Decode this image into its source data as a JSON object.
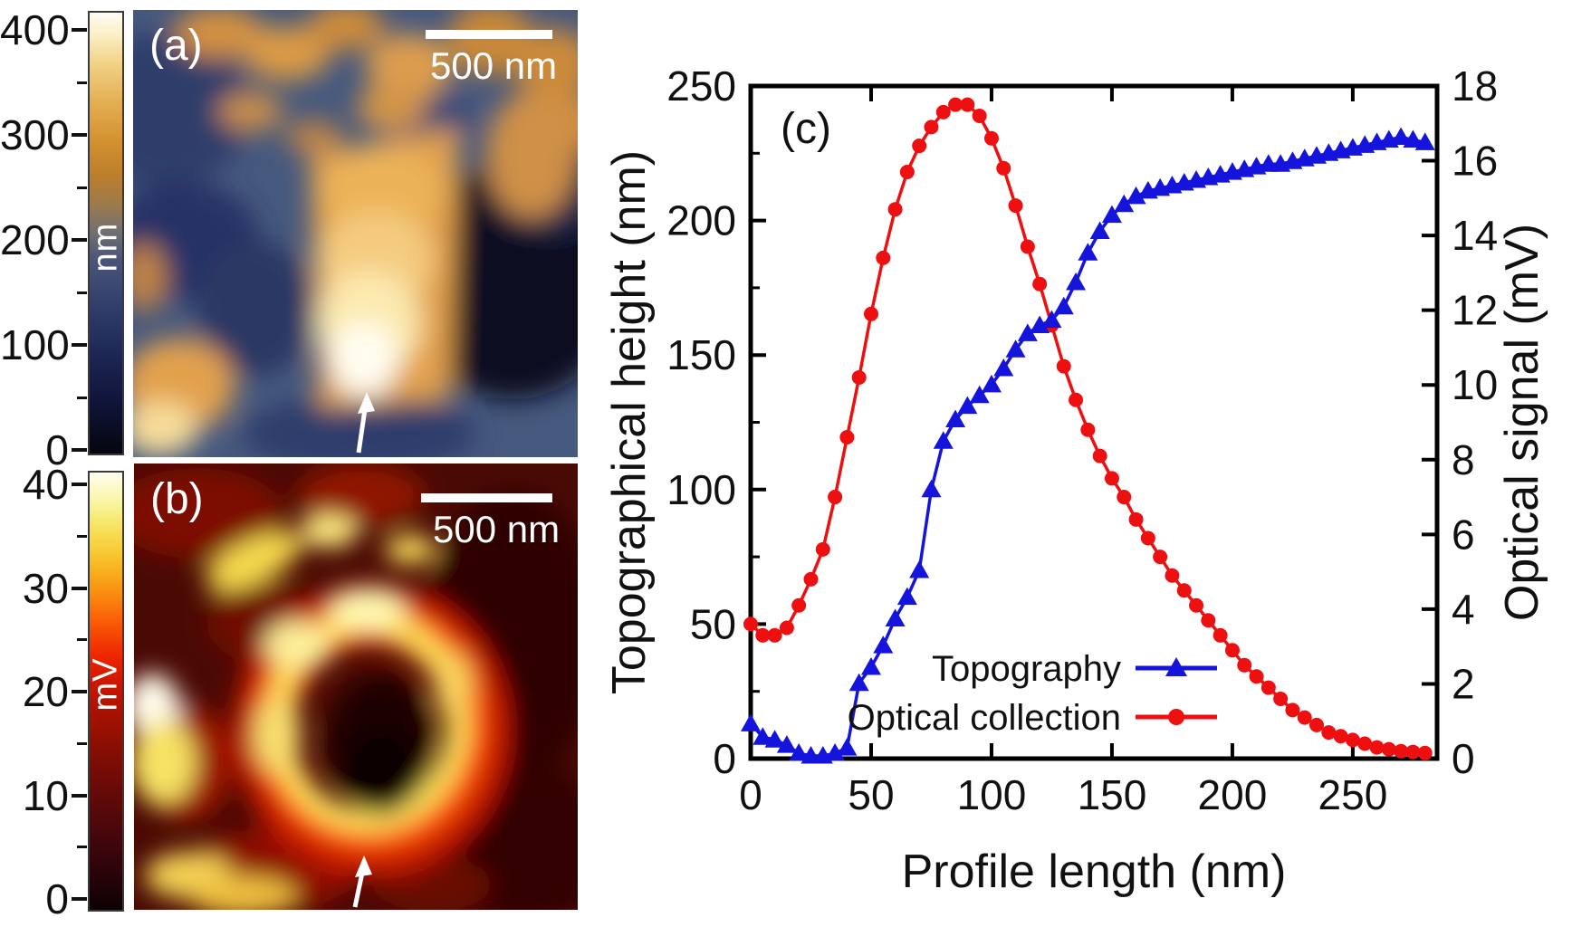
{
  "panel_a": {
    "label": "(a)",
    "scale_bar_text": "500 nm",
    "arrow_icon": "up-arrow",
    "description": "AFM topography map, bright orange crystal on blue substrate",
    "colorbar": {
      "unit": "nm",
      "min": 0,
      "max": 400,
      "major_ticks": [
        400,
        300,
        200,
        100,
        0
      ],
      "minor_ticks": [
        350,
        250,
        150,
        50
      ],
      "gradient": [
        [
          "#05060f",
          0
        ],
        [
          "#10153a",
          12
        ],
        [
          "#1f2a58",
          24
        ],
        [
          "#32406d",
          34
        ],
        [
          "#4a5578",
          44
        ],
        [
          "#6f6f72",
          50
        ],
        [
          "#9a7a4e",
          56
        ],
        [
          "#bd7e2c",
          63
        ],
        [
          "#d3912f",
          71
        ],
        [
          "#e4b054",
          80
        ],
        [
          "#f2d489",
          89
        ],
        [
          "#fbefc6",
          95
        ],
        [
          "#fefcf4",
          100
        ]
      ]
    }
  },
  "panel_b": {
    "label": "(b)",
    "scale_bar_text": "500 nm",
    "arrow_icon": "up-arrow",
    "description": "Near-field optical collection map, bright ring around dark core",
    "colorbar": {
      "unit": "mV",
      "min": 0,
      "max": 40,
      "major_ticks": [
        40,
        30,
        20,
        10,
        0
      ],
      "minor_ticks": [
        35,
        25,
        15,
        5
      ],
      "gradient": [
        [
          "#0d0103",
          0
        ],
        [
          "#2c040a",
          9
        ],
        [
          "#49070c",
          18
        ],
        [
          "#660a08",
          27
        ],
        [
          "#840e04",
          36
        ],
        [
          "#a81202",
          45
        ],
        [
          "#cf1601",
          52
        ],
        [
          "#ee2500",
          58
        ],
        [
          "#fb5c08",
          66
        ],
        [
          "#f99210",
          73
        ],
        [
          "#f7c028",
          80
        ],
        [
          "#f6e158",
          87
        ],
        [
          "#f9f4a0",
          93
        ],
        [
          "#fefdf0",
          100
        ]
      ]
    }
  },
  "chart_data": {
    "type": "line",
    "panel_label": "(c)",
    "xlabel": "Profile length (nm)",
    "ylabel_left": "Topographical height (nm)",
    "ylabel_right": "Optical signal (mV)",
    "xlim": [
      0,
      285
    ],
    "ylim_left": [
      0,
      250
    ],
    "ylim_right": [
      0,
      18
    ],
    "xticks": [
      0,
      50,
      100,
      150,
      200,
      250
    ],
    "yticks_left": [
      0,
      50,
      100,
      150,
      200,
      250
    ],
    "yticks_left_minor": [
      25,
      75,
      125,
      175,
      225
    ],
    "yticks_right": [
      0,
      2,
      4,
      6,
      8,
      10,
      12,
      14,
      16,
      18
    ],
    "grid": false,
    "legend_position": "inside-bottom-center",
    "x": [
      0,
      5,
      10,
      15,
      20,
      25,
      30,
      35,
      40,
      45,
      50,
      55,
      60,
      65,
      70,
      75,
      80,
      85,
      90,
      95,
      100,
      105,
      110,
      115,
      120,
      125,
      130,
      135,
      140,
      145,
      150,
      155,
      160,
      165,
      170,
      175,
      180,
      185,
      190,
      195,
      200,
      205,
      210,
      215,
      220,
      225,
      230,
      235,
      240,
      245,
      250,
      255,
      260,
      265,
      270,
      275,
      280
    ],
    "series": [
      {
        "name": "Topography",
        "axis": "left",
        "color": "#1414dd",
        "marker": "triangle",
        "values": [
          13,
          8,
          7,
          5,
          2,
          1,
          1,
          2,
          4,
          28,
          34,
          42,
          52,
          60,
          70,
          100,
          118,
          126,
          131,
          135,
          139,
          145,
          152,
          158,
          161,
          163,
          168,
          177,
          188,
          196,
          202,
          206,
          209,
          211,
          212,
          213,
          214,
          215,
          216,
          217,
          218,
          219,
          220,
          221,
          221,
          222,
          223,
          224,
          225,
          226,
          227,
          228,
          229,
          230,
          231,
          230,
          229
        ]
      },
      {
        "name": "Optical collection",
        "axis": "right",
        "color": "#ee1010",
        "marker": "circle",
        "values": [
          3.6,
          3.3,
          3.3,
          3.5,
          4.1,
          4.8,
          5.6,
          7.0,
          8.6,
          10.2,
          11.9,
          13.4,
          14.7,
          15.7,
          16.4,
          16.9,
          17.3,
          17.5,
          17.5,
          17.2,
          16.6,
          15.8,
          14.8,
          13.7,
          12.7,
          11.6,
          10.5,
          9.6,
          8.8,
          8.1,
          7.5,
          7.0,
          6.4,
          5.9,
          5.4,
          4.9,
          4.5,
          4.1,
          3.7,
          3.3,
          2.9,
          2.5,
          2.2,
          1.9,
          1.6,
          1.3,
          1.1,
          0.9,
          0.7,
          0.6,
          0.5,
          0.4,
          0.3,
          0.25,
          0.2,
          0.18,
          0.15
        ]
      }
    ]
  }
}
